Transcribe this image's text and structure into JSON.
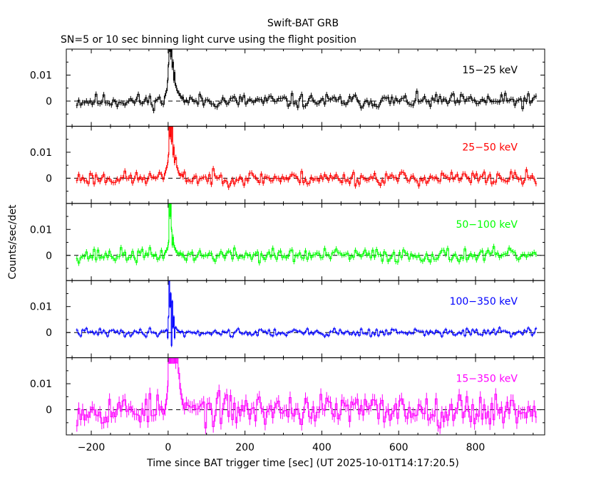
{
  "chart_data": {
    "type": "line",
    "title": "Swift-BAT GRB",
    "subtitle": "SN=5 or 10 sec binning light curve using the flight position",
    "xlabel": "Time since BAT trigger time [sec] (UT 2025-10-01T14:17:20.5)",
    "ylabel": "Counts/sec/det",
    "xlim": [
      -265,
      980
    ],
    "ylim": [
      -0.0097,
      0.02
    ],
    "x_ticks": [
      -200,
      0,
      200,
      400,
      600,
      800
    ],
    "x_tick_labels": [
      "−200",
      "0",
      "200",
      "400",
      "600",
      "800"
    ],
    "y_ticks": [
      0,
      0.01
    ],
    "y_tick_labels": [
      "0",
      "0.01"
    ],
    "grid": false,
    "zero_line": "dashed",
    "bin_start": -240,
    "bin_end": 960,
    "peak_window": [
      -10,
      40
    ],
    "panels": [
      {
        "name": "15−25 keV",
        "color": "#000000",
        "noise": 0.0019,
        "seed": 11,
        "peak": [
          [
            -10,
            0.002
          ],
          [
            -6,
            0.004
          ],
          [
            -2,
            0.008
          ],
          [
            0,
            0.014
          ],
          [
            2,
            0.02
          ],
          [
            4,
            0.02
          ],
          [
            6,
            0.017
          ],
          [
            8,
            0.02
          ],
          [
            10,
            0.013
          ],
          [
            12,
            0.015
          ],
          [
            14,
            0.008
          ],
          [
            16,
            0.011
          ],
          [
            18,
            0.006
          ],
          [
            22,
            0.004
          ],
          [
            26,
            0.003
          ],
          [
            30,
            0.002
          ],
          [
            34,
            0.001
          ],
          [
            38,
            0.0015
          ]
        ]
      },
      {
        "name": "25−50 keV",
        "color": "#ff0000",
        "noise": 0.0019,
        "seed": 23,
        "peak": [
          [
            -10,
            0.002
          ],
          [
            -6,
            0.004
          ],
          [
            -2,
            0.006
          ],
          [
            0,
            0.009
          ],
          [
            2,
            0.02
          ],
          [
            4,
            0.016
          ],
          [
            6,
            0.02
          ],
          [
            8,
            0.014
          ],
          [
            10,
            0.02
          ],
          [
            12,
            0.009
          ],
          [
            14,
            0.012
          ],
          [
            16,
            0.006
          ],
          [
            18,
            0.008
          ],
          [
            22,
            0.004
          ],
          [
            26,
            0.002
          ],
          [
            30,
            0.001
          ],
          [
            34,
            0.0015
          ],
          [
            38,
            0.0005
          ]
        ]
      },
      {
        "name": "50−100 keV",
        "color": "#00ff00",
        "noise": 0.0019,
        "seed": 37,
        "peak": [
          [
            -10,
            0.001
          ],
          [
            -6,
            0.002
          ],
          [
            -2,
            0.003
          ],
          [
            0,
            0.005
          ],
          [
            2,
            0.02
          ],
          [
            4,
            0.015
          ],
          [
            6,
            0.02
          ],
          [
            8,
            0.01
          ],
          [
            10,
            0.004
          ],
          [
            12,
            0.007
          ],
          [
            14,
            0.004
          ],
          [
            16,
            0.003
          ],
          [
            18,
            0.002
          ],
          [
            22,
            0.001
          ],
          [
            26,
            0.0005
          ],
          [
            30,
            0.001
          ],
          [
            34,
            0.0
          ],
          [
            38,
            0.0005
          ]
        ]
      },
      {
        "name": "100−350 keV",
        "color": "#0000ff",
        "noise": 0.0011,
        "seed": 41,
        "peak": [
          [
            -10,
            0.0005
          ],
          [
            -6,
            0.001
          ],
          [
            -2,
            -0.002
          ],
          [
            0,
            0.006
          ],
          [
            2,
            0.02
          ],
          [
            4,
            0.01
          ],
          [
            6,
            0.015
          ],
          [
            8,
            -0.005
          ],
          [
            10,
            0.012
          ],
          [
            12,
            0.002
          ],
          [
            14,
            0.006
          ],
          [
            16,
            -0.002
          ],
          [
            18,
            0.002
          ],
          [
            22,
            0.001
          ],
          [
            26,
            0.0005
          ],
          [
            30,
            0.0
          ],
          [
            34,
            0.0005
          ],
          [
            38,
            0.0
          ]
        ]
      },
      {
        "name": "15−350 keV",
        "color": "#ff00ff",
        "noise": 0.0042,
        "seed": 53,
        "peak": [
          [
            -10,
            0.0
          ],
          [
            -6,
            0.004
          ],
          [
            -2,
            0.009
          ],
          [
            0,
            0.02
          ],
          [
            2,
            0.02
          ],
          [
            4,
            0.02
          ],
          [
            6,
            0.02
          ],
          [
            8,
            0.02
          ],
          [
            10,
            0.02
          ],
          [
            12,
            0.02
          ],
          [
            14,
            0.02
          ],
          [
            16,
            0.02
          ],
          [
            18,
            0.018
          ],
          [
            22,
            0.02
          ],
          [
            26,
            0.014
          ],
          [
            30,
            0.008
          ],
          [
            34,
            0.004
          ],
          [
            38,
            0.002
          ]
        ]
      }
    ]
  }
}
